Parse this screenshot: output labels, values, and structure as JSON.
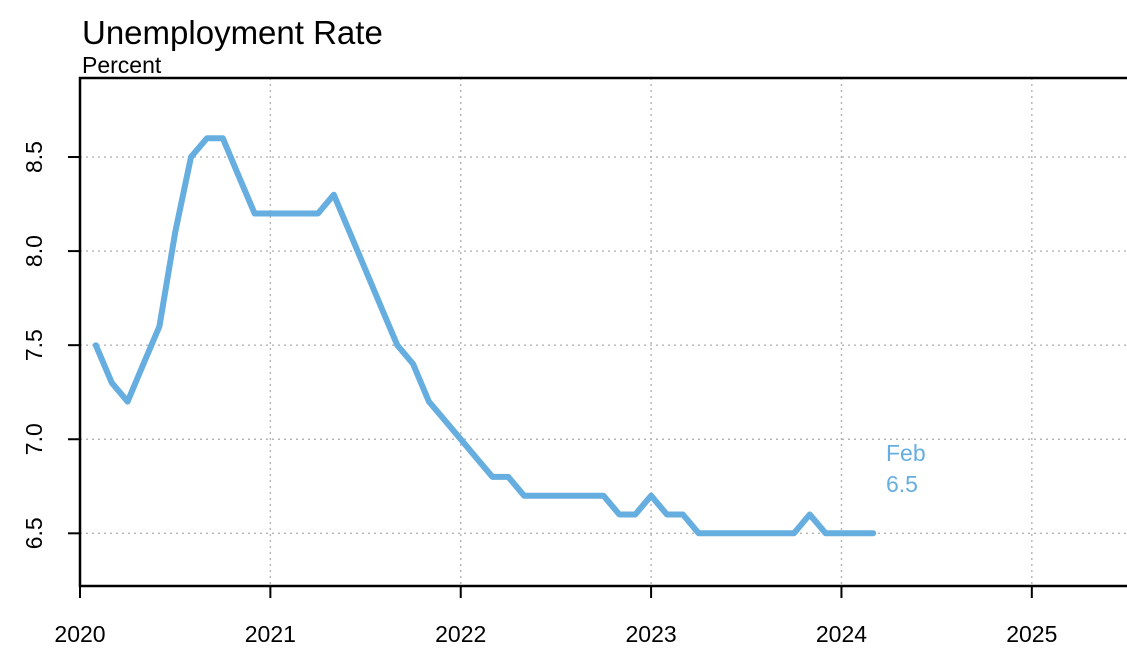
{
  "chart_data": {
    "type": "line",
    "title": "Unemployment Rate",
    "subtitle": "Percent",
    "xlim": [
      2020,
      2025.5
    ],
    "ylim": [
      6.22,
      8.92
    ],
    "x_ticks": [
      2020,
      2021,
      2022,
      2023,
      2024,
      2025
    ],
    "x_tick_labels": [
      "2020",
      "2021",
      "2022",
      "2023",
      "2024",
      "2025"
    ],
    "y_ticks": [
      6.5,
      7.0,
      7.5,
      8.0,
      8.5
    ],
    "y_tick_labels": [
      "6.5",
      "7.0",
      "7.5",
      "8.0",
      "8.5"
    ],
    "grid": true,
    "colors": {
      "series": "#67aee0",
      "axis": "#000000",
      "grid": "#b4b4b4"
    },
    "series": [
      {
        "points": [
          [
            2020.083,
            7.5
          ],
          [
            2020.167,
            7.3
          ],
          [
            2020.25,
            7.2
          ],
          [
            2020.333,
            7.4
          ],
          [
            2020.417,
            7.6
          ],
          [
            2020.5,
            8.1
          ],
          [
            2020.583,
            8.5
          ],
          [
            2020.667,
            8.6
          ],
          [
            2020.75,
            8.6
          ],
          [
            2020.833,
            8.4
          ],
          [
            2020.917,
            8.2
          ],
          [
            2021.0,
            8.2
          ],
          [
            2021.083,
            8.2
          ],
          [
            2021.167,
            8.2
          ],
          [
            2021.25,
            8.2
          ],
          [
            2021.333,
            8.3
          ],
          [
            2021.417,
            8.1
          ],
          [
            2021.5,
            7.9
          ],
          [
            2021.583,
            7.7
          ],
          [
            2021.667,
            7.5
          ],
          [
            2021.75,
            7.4
          ],
          [
            2021.833,
            7.2
          ],
          [
            2021.917,
            7.1
          ],
          [
            2022.0,
            7.0
          ],
          [
            2022.083,
            6.9
          ],
          [
            2022.167,
            6.8
          ],
          [
            2022.25,
            6.8
          ],
          [
            2022.333,
            6.7
          ],
          [
            2022.417,
            6.7
          ],
          [
            2022.5,
            6.7
          ],
          [
            2022.583,
            6.7
          ],
          [
            2022.667,
            6.7
          ],
          [
            2022.75,
            6.7
          ],
          [
            2022.833,
            6.6
          ],
          [
            2022.917,
            6.6
          ],
          [
            2023.0,
            6.7
          ],
          [
            2023.083,
            6.6
          ],
          [
            2023.167,
            6.6
          ],
          [
            2023.25,
            6.5
          ],
          [
            2023.333,
            6.5
          ],
          [
            2023.417,
            6.5
          ],
          [
            2023.5,
            6.5
          ],
          [
            2023.583,
            6.5
          ],
          [
            2023.667,
            6.5
          ],
          [
            2023.75,
            6.5
          ],
          [
            2023.833,
            6.6
          ],
          [
            2023.917,
            6.5
          ],
          [
            2024.0,
            6.5
          ],
          [
            2024.083,
            6.5
          ],
          [
            2024.167,
            6.5
          ]
        ]
      }
    ],
    "annotation": {
      "line1": "Feb",
      "line2": "6.5"
    }
  }
}
